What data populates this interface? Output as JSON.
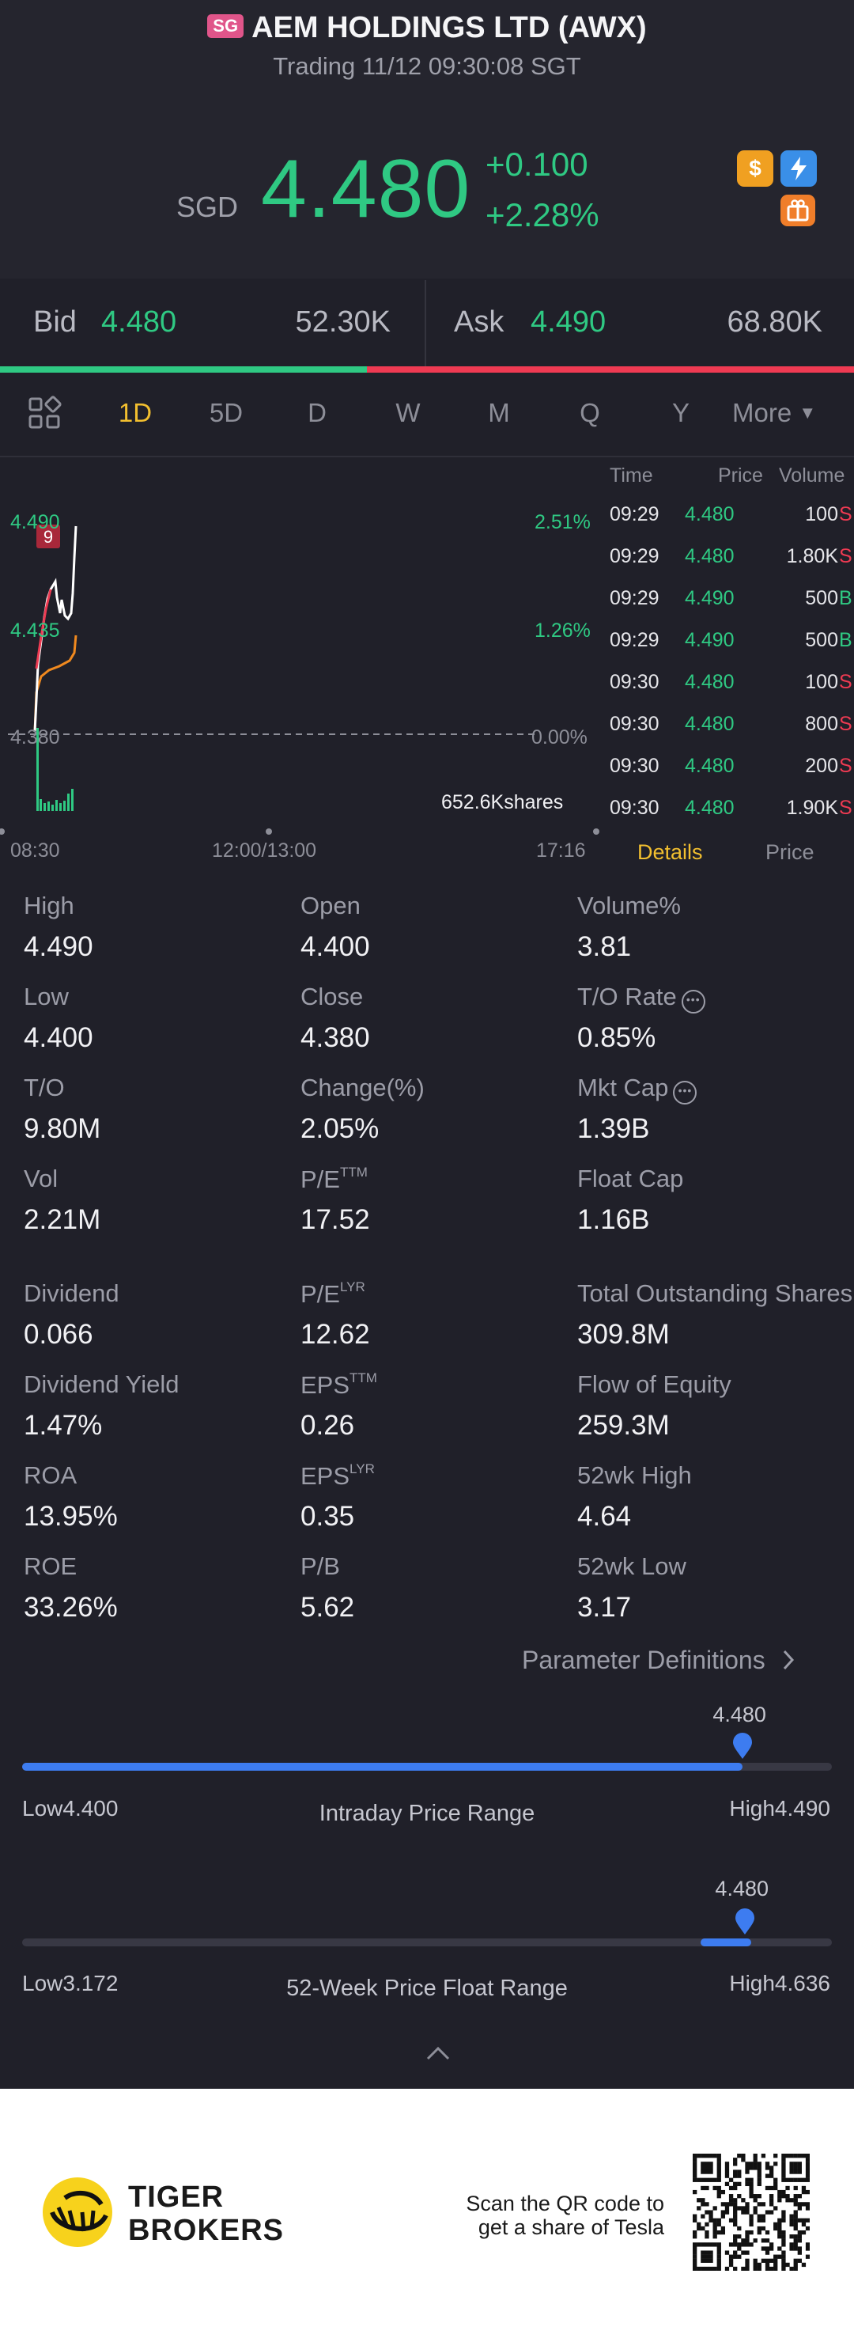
{
  "header": {
    "market_badge": "SG",
    "title": "AEM HOLDINGS LTD (AWX)",
    "status": "Trading 11/12 09:30:08 SGT",
    "currency": "SGD",
    "last_price": "4.480",
    "change": "+0.100",
    "change_pct": "+2.28%",
    "icons": [
      "dollar-icon",
      "flash-icon",
      "gift-icon"
    ]
  },
  "quote": {
    "bid_label": "Bid",
    "bid_price": "4.480",
    "bid_volume": "52.30K",
    "ask_label": "Ask",
    "ask_price": "4.490",
    "ask_volume": "68.80K",
    "bid_ratio": 0.43
  },
  "tabs": {
    "items": [
      "1D",
      "5D",
      "D",
      "W",
      "M",
      "Q",
      "Y"
    ],
    "active": "1D",
    "more": "More"
  },
  "chart": {
    "price_labels": {
      "high": "4.490",
      "mid": "4.435",
      "low": "4.380"
    },
    "pct_labels": {
      "high": "2.51%",
      "mid": "1.26%",
      "low": "0.00%"
    },
    "volume_label": "652.6Kshares",
    "x_labels": [
      "08:30",
      "12:00/13:00",
      "17:16"
    ],
    "marker": "9"
  },
  "ticks": {
    "headers": {
      "time": "Time",
      "price": "Price",
      "volume": "Volume"
    },
    "rows": [
      {
        "time": "09:29",
        "price": "4.480",
        "volume": "100",
        "side": "S"
      },
      {
        "time": "09:29",
        "price": "4.480",
        "volume": "1.80K",
        "side": "S"
      },
      {
        "time": "09:29",
        "price": "4.490",
        "volume": "500",
        "side": "B"
      },
      {
        "time": "09:29",
        "price": "4.490",
        "volume": "500",
        "side": "B"
      },
      {
        "time": "09:30",
        "price": "4.480",
        "volume": "100",
        "side": "S"
      },
      {
        "time": "09:30",
        "price": "4.480",
        "volume": "800",
        "side": "S"
      },
      {
        "time": "09:30",
        "price": "4.480",
        "volume": "200",
        "side": "S"
      },
      {
        "time": "09:30",
        "price": "4.480",
        "volume": "1.90K",
        "side": "S"
      }
    ],
    "tab_details": "Details",
    "tab_price": "Price"
  },
  "stats": {
    "high": {
      "label": "High",
      "value": "4.490"
    },
    "open": {
      "label": "Open",
      "value": "4.400"
    },
    "volume_pct": {
      "label": "Volume%",
      "value": "3.81"
    },
    "low": {
      "label": "Low",
      "value": "4.400"
    },
    "close": {
      "label": "Close",
      "value": "4.380"
    },
    "to_rate": {
      "label": "T/O Rate",
      "value": "0.85%"
    },
    "to": {
      "label": "T/O",
      "value": "9.80M"
    },
    "change_pct": {
      "label": "Change(%)",
      "value": "2.05%"
    },
    "mkt_cap": {
      "label": "Mkt Cap",
      "value": "1.39B"
    },
    "vol": {
      "label": "Vol",
      "value": "2.21M"
    },
    "pe_ttm": {
      "label": "P/E",
      "sup": "TTM",
      "value": "17.52"
    },
    "float_cap": {
      "label": "Float Cap",
      "value": "1.16B"
    },
    "dividend": {
      "label": "Dividend",
      "value": "0.066"
    },
    "pe_lyr": {
      "label": "P/E",
      "sup": "LYR",
      "value": "12.62"
    },
    "total_shares": {
      "label": "Total Outstanding Shares",
      "value": "309.8M"
    },
    "dividend_yield": {
      "label": "Dividend Yield",
      "value": "1.47%"
    },
    "eps_ttm": {
      "label": "EPS",
      "sup": "TTM",
      "value": "0.26"
    },
    "flow_equity": {
      "label": "Flow of Equity",
      "value": "259.3M"
    },
    "roa": {
      "label": "ROA",
      "value": "13.95%"
    },
    "eps_lyr": {
      "label": "EPS",
      "sup": "LYR",
      "value": "0.35"
    },
    "wk52_high": {
      "label": "52wk High",
      "value": "4.64"
    },
    "roe": {
      "label": "ROE",
      "value": "33.26%"
    },
    "pb": {
      "label": "P/B",
      "value": "5.62"
    },
    "wk52_low": {
      "label": "52wk Low",
      "value": "3.17"
    },
    "param_definitions": "Parameter Definitions"
  },
  "intraday_range": {
    "title": "Intraday Price Range",
    "current": "4.480",
    "low_label": "Low4.400",
    "high_label": "High4.490",
    "position_fraction": 0.89
  },
  "week52_range": {
    "title": "52-Week Price Float Range",
    "current": "4.480",
    "low_label": "Low3.172",
    "high_label": "High4.636",
    "position_fraction": 0.893
  },
  "footer": {
    "brand_line1": "TIGER",
    "brand_line2": "BROKERS",
    "scan_line1": "Scan the QR code to",
    "scan_line2": "get a share of Tesla"
  },
  "colors": {
    "background": "#202029",
    "up_green": "#2fc983",
    "down_red": "#ee3a52",
    "accent_yellow": "#f2bf2f",
    "range_blue": "#3d7cf0"
  }
}
